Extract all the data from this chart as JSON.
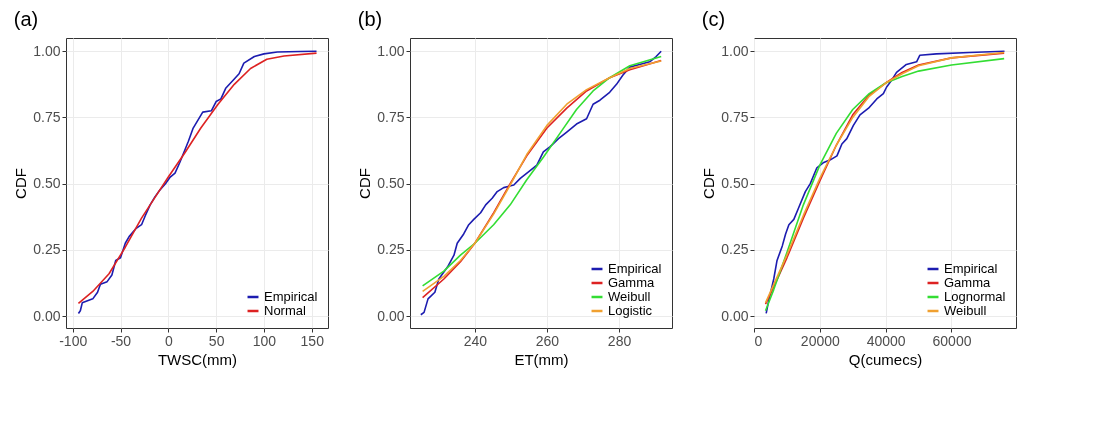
{
  "chart_data": [
    {
      "type": "line",
      "title": "(a)",
      "xlabel": "TWSC(mm)",
      "ylabel": "CDF",
      "xlim": [
        -107,
        167
      ],
      "xticks": [
        -100,
        -50,
        0,
        50,
        100,
        150
      ],
      "ylim": [
        -0.045,
        1.05
      ],
      "yticks": [
        {
          "value": 0,
          "label": "0.00"
        },
        {
          "value": 0.25,
          "label": "0.25"
        },
        {
          "value": 0.5,
          "label": "0.50"
        },
        {
          "value": 0.75,
          "label": "0.75"
        },
        {
          "value": 1,
          "label": "1.00"
        }
      ],
      "grid": true,
      "legend": "bottom right",
      "line_style": "solid",
      "series": [
        {
          "name": "Empirical",
          "color": "#1c1cb0",
          "x": [
            -94,
            -92,
            -90,
            -79,
            -74,
            -71,
            -64,
            -59,
            -55,
            -50,
            -45,
            -41,
            -34,
            -28,
            -24,
            -19,
            -14,
            -9,
            -3,
            2,
            7,
            12,
            21,
            26,
            31,
            36,
            45,
            50,
            55,
            60,
            69,
            74,
            79,
            90,
            100,
            114,
            138,
            155
          ],
          "values": [
            0.01,
            0.02,
            0.05,
            0.065,
            0.09,
            0.12,
            0.13,
            0.155,
            0.21,
            0.22,
            0.275,
            0.3,
            0.33,
            0.345,
            0.38,
            0.42,
            0.45,
            0.475,
            0.5,
            0.525,
            0.54,
            0.58,
            0.66,
            0.71,
            0.74,
            0.77,
            0.775,
            0.81,
            0.82,
            0.86,
            0.895,
            0.915,
            0.955,
            0.98,
            0.99,
            0.997,
            0.999,
            1.0
          ]
        },
        {
          "name": "Normal",
          "color": "#dd2222",
          "x": [
            -94,
            -79,
            -62,
            -45,
            -28,
            -10,
            0,
            17,
            34,
            52,
            69,
            86,
            103,
            121,
            155
          ],
          "values": [
            0.048,
            0.093,
            0.16,
            0.26,
            0.37,
            0.47,
            0.525,
            0.615,
            0.71,
            0.8,
            0.875,
            0.935,
            0.97,
            0.982,
            0.993
          ]
        }
      ]
    },
    {
      "type": "line",
      "title": "(b)",
      "xlabel": "ET(mm)",
      "ylabel": "CDF",
      "xlim": [
        222,
        294.7
      ],
      "xticks": [
        240,
        260,
        280
      ],
      "ylim": [
        -0.045,
        1.05
      ],
      "yticks": [
        {
          "value": 0,
          "label": "0.00"
        },
        {
          "value": 0.25,
          "label": "0.25"
        },
        {
          "value": 0.5,
          "label": "0.50"
        },
        {
          "value": 0.75,
          "label": "0.75"
        },
        {
          "value": 1,
          "label": "1.00"
        }
      ],
      "grid": true,
      "legend": "bottom right",
      "line_style": "solid",
      "series": [
        {
          "name": "Empirical",
          "color": "#1c1cb0",
          "x": [
            225,
            225.9,
            227,
            228.9,
            230,
            232.4,
            234.2,
            235.1,
            236.9,
            238.3,
            239.7,
            241.6,
            243,
            244.8,
            246.2,
            248,
            250.8,
            252.6,
            255.4,
            257.2,
            259,
            260.9,
            263.2,
            265.5,
            268.2,
            271,
            272.8,
            274.7,
            277.4,
            279.3,
            281.1,
            283,
            285.7,
            288.5,
            290.3,
            291.7
          ],
          "values": [
            0.005,
            0.014,
            0.065,
            0.09,
            0.14,
            0.185,
            0.23,
            0.275,
            0.31,
            0.345,
            0.365,
            0.39,
            0.42,
            0.445,
            0.47,
            0.485,
            0.495,
            0.52,
            0.55,
            0.57,
            0.62,
            0.64,
            0.67,
            0.695,
            0.725,
            0.745,
            0.8,
            0.815,
            0.845,
            0.875,
            0.91,
            0.94,
            0.95,
            0.96,
            0.98,
            1.0
          ]
        },
        {
          "name": "Gamma",
          "color": "#dd2222",
          "x": [
            225.5,
            231.4,
            236,
            240,
            245.2,
            249.8,
            254.4,
            260,
            265.5,
            271,
            277.4,
            283,
            291.7
          ],
          "values": [
            0.07,
            0.14,
            0.205,
            0.275,
            0.39,
            0.5,
            0.605,
            0.71,
            0.785,
            0.85,
            0.9,
            0.93,
            0.965
          ]
        },
        {
          "name": "Weibull",
          "color": "#33dd33",
          "x": [
            225.5,
            231.4,
            236,
            240,
            245.2,
            249.8,
            254.4,
            259,
            263.6,
            268.2,
            272.8,
            277.4,
            283,
            291.7
          ],
          "values": [
            0.114,
            0.17,
            0.23,
            0.275,
            0.345,
            0.42,
            0.515,
            0.6,
            0.69,
            0.78,
            0.85,
            0.9,
            0.945,
            0.98
          ]
        },
        {
          "name": "Logistic",
          "color": "#f0a030",
          "x": [
            225.5,
            231.4,
            236,
            240,
            245.2,
            249.8,
            254.4,
            260,
            265.5,
            271,
            277.4,
            283,
            291.7
          ],
          "values": [
            0.093,
            0.15,
            0.21,
            0.275,
            0.385,
            0.495,
            0.61,
            0.72,
            0.8,
            0.855,
            0.9,
            0.935,
            0.963
          ]
        }
      ]
    },
    {
      "type": "line",
      "title": "(c)",
      "xlabel": "Q(cumecs)",
      "ylabel": "CDF",
      "xlim": [
        0,
        79600
      ],
      "xticks": [
        0,
        20000,
        40000,
        60000
      ],
      "ylim": [
        -0.045,
        1.05
      ],
      "yticks": [
        {
          "value": 0,
          "label": "0.00"
        },
        {
          "value": 0.25,
          "label": "0.25"
        },
        {
          "value": 0.5,
          "label": "0.50"
        },
        {
          "value": 0.75,
          "label": "0.75"
        },
        {
          "value": 1,
          "label": "1.00"
        }
      ],
      "grid": true,
      "legend": "bottom right",
      "line_style": "solid",
      "series": [
        {
          "name": "Empirical",
          "color": "#1c1cb0",
          "x": [
            3700,
            4500,
            6000,
            7000,
            8600,
            9600,
            10600,
            12100,
            13600,
            15600,
            17100,
            19100,
            21200,
            23200,
            25200,
            26700,
            28200,
            30200,
            32200,
            34800,
            37300,
            39300,
            40300,
            41800,
            43300,
            46300,
            49400,
            50400,
            55400,
            65500,
            76100
          ],
          "values": [
            0.01,
            0.06,
            0.14,
            0.21,
            0.265,
            0.31,
            0.345,
            0.365,
            0.41,
            0.47,
            0.5,
            0.56,
            0.58,
            0.59,
            0.605,
            0.65,
            0.67,
            0.72,
            0.76,
            0.785,
            0.82,
            0.84,
            0.865,
            0.89,
            0.92,
            0.95,
            0.96,
            0.985,
            0.99,
            0.995,
            1.0
          ]
        },
        {
          "name": "Gamma",
          "color": "#dd2222",
          "x": [
            3500,
            6000,
            10000,
            15000,
            20000,
            25000,
            30000,
            35000,
            40000,
            45000,
            50000,
            60000,
            76000
          ],
          "values": [
            0.045,
            0.11,
            0.22,
            0.37,
            0.51,
            0.645,
            0.76,
            0.835,
            0.88,
            0.92,
            0.948,
            0.975,
            0.993
          ]
        },
        {
          "name": "Lognormal",
          "color": "#33dd33",
          "x": [
            3500,
            6000,
            10000,
            15000,
            20000,
            25000,
            30000,
            35000,
            40000,
            45000,
            50000,
            60000,
            76000
          ],
          "values": [
            0.02,
            0.1,
            0.24,
            0.42,
            0.57,
            0.69,
            0.78,
            0.84,
            0.88,
            0.905,
            0.925,
            0.948,
            0.972
          ]
        },
        {
          "name": "Weibull",
          "color": "#f0a030",
          "x": [
            3500,
            6000,
            10000,
            15000,
            20000,
            25000,
            30000,
            35000,
            40000,
            45000,
            50000,
            60000,
            76000
          ],
          "values": [
            0.05,
            0.12,
            0.23,
            0.38,
            0.52,
            0.645,
            0.75,
            0.83,
            0.88,
            0.915,
            0.945,
            0.975,
            0.995
          ]
        }
      ]
    }
  ]
}
